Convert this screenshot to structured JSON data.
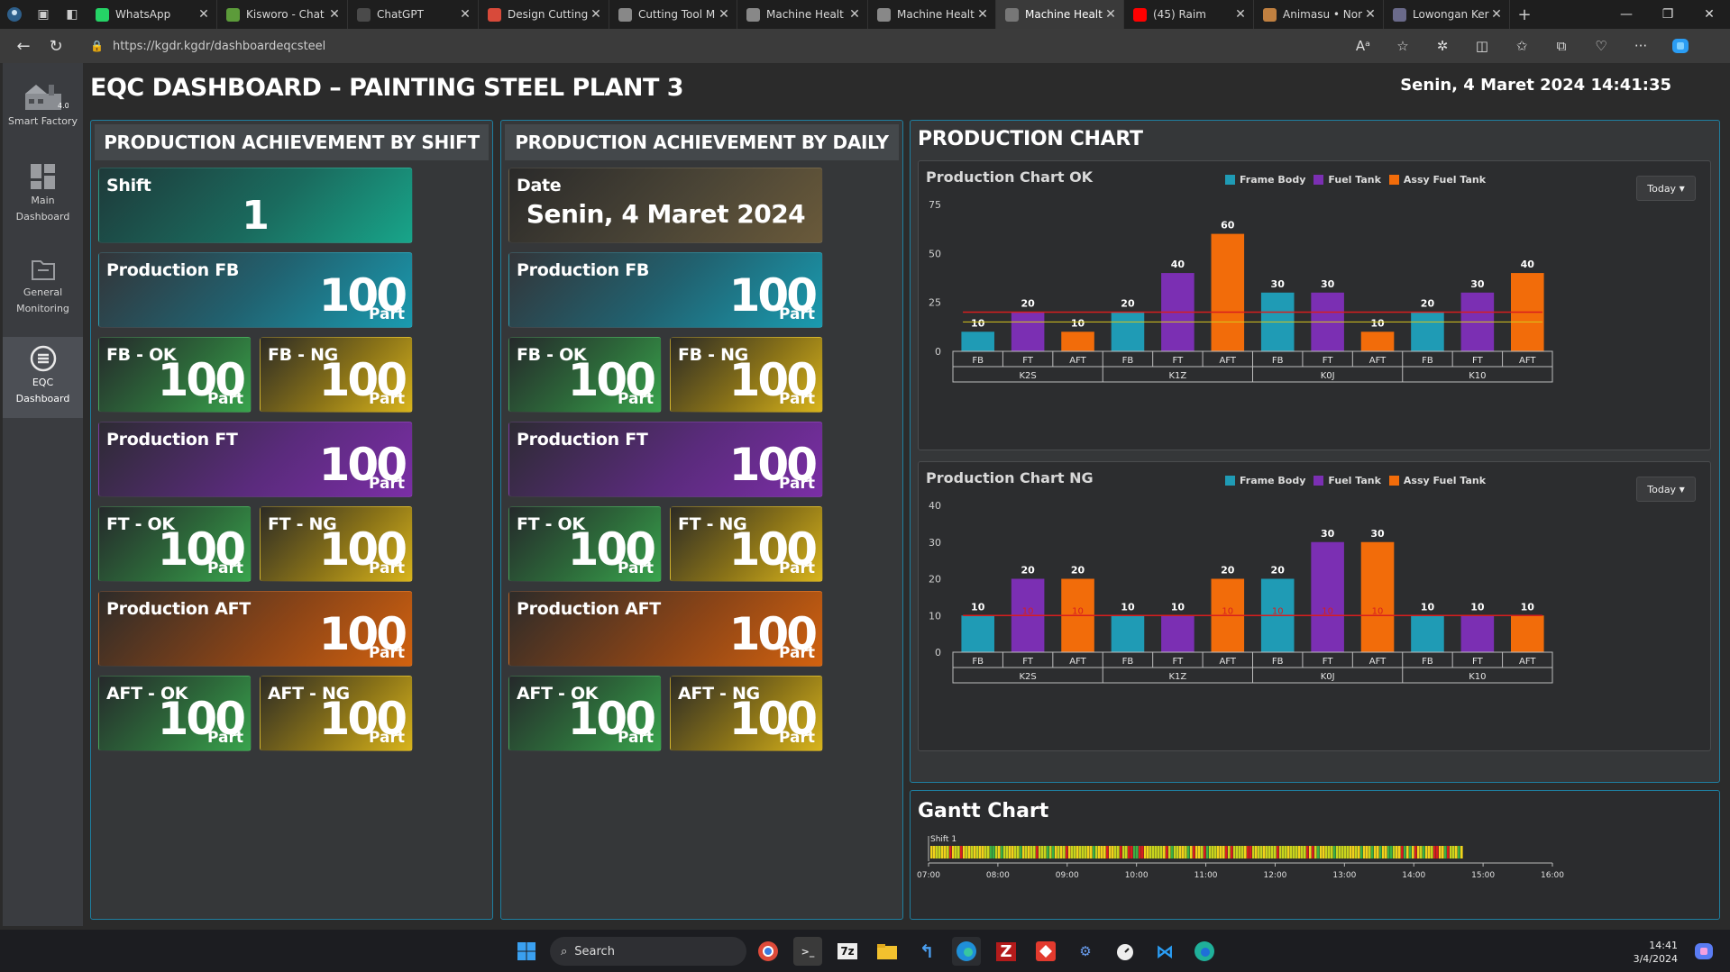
{
  "browser": {
    "tabs": [
      {
        "label": "WhatsApp",
        "icon": "whatsapp-icon",
        "color": "#25d366"
      },
      {
        "label": "Kisworo - Chat",
        "icon": "chat-icon",
        "color": "#5c9b3a"
      },
      {
        "label": "ChatGPT",
        "icon": "chatgpt-icon",
        "color": "#4a4a4a"
      },
      {
        "label": "Design Cutting",
        "icon": "doc-icon",
        "color": "#d84a3a"
      },
      {
        "label": "Cutting Tool M",
        "icon": "page-icon",
        "color": "#888888"
      },
      {
        "label": "Machine Healt",
        "icon": "page-icon",
        "color": "#888888"
      },
      {
        "label": "Machine Healt",
        "icon": "page-icon",
        "color": "#888888"
      },
      {
        "label": "Machine Healt",
        "icon": "user-icon",
        "color": "#777777"
      },
      {
        "label": "(45) Raim",
        "icon": "youtube-icon",
        "color": "#ff0000"
      },
      {
        "label": "Animasu • Nor",
        "icon": "anime-icon",
        "color": "#c08040"
      },
      {
        "label": "Lowongan Ker",
        "icon": "job-icon",
        "color": "#6a6a8a"
      }
    ],
    "active_tab": 7,
    "url_host": "https://kgdr.kgdr/dashboardeqcsteel"
  },
  "sidebar": {
    "items": [
      {
        "label": "Smart Factory",
        "icon": "factory-icon"
      },
      {
        "label": "Main Dashboard",
        "icon": "grid-icon"
      },
      {
        "label": "General Monitoring",
        "icon": "folder-icon"
      },
      {
        "label": "EQC Dashboard",
        "icon": "eqc-icon"
      }
    ],
    "factory_badge": "4.0"
  },
  "header": {
    "title": "EQC DASHBOARD – PAINTING STEEL PLANT 3",
    "datetime": "Senin, 4 Maret 2024 14:41:35"
  },
  "shift_panel": {
    "title": "PRODUCTION ACHIEVEMENT BY SHIFT",
    "shift_label": "Shift",
    "shift_value": "1",
    "unit": "Part",
    "prod_fb_label": "Production FB",
    "prod_fb": "100",
    "fb_ok_label": "FB - OK",
    "fb_ok": "100",
    "fb_ng_label": "FB - NG",
    "fb_ng": "100",
    "prod_ft_label": "Production FT",
    "prod_ft": "100",
    "ft_ok_label": "FT - OK",
    "ft_ok": "100",
    "ft_ng_label": "FT - NG",
    "ft_ng": "100",
    "prod_aft_label": "Production AFT",
    "prod_aft": "100",
    "aft_ok_label": "AFT - OK",
    "aft_ok": "100",
    "aft_ng_label": "AFT - NG",
    "aft_ng": "100"
  },
  "daily_panel": {
    "title": "PRODUCTION ACHIEVEMENT BY DAILY",
    "date_label": "Date",
    "date_value": "Senin, 4 Maret 2024",
    "unit": "Part",
    "prod_fb_label": "Production FB",
    "prod_fb": "100",
    "fb_ok_label": "FB - OK",
    "fb_ok": "100",
    "fb_ng_label": "FB - NG",
    "fb_ng": "100",
    "prod_ft_label": "Production FT",
    "prod_ft": "100",
    "ft_ok_label": "FT - OK",
    "ft_ok": "100",
    "ft_ng_label": "FT - NG",
    "ft_ng": "100",
    "prod_aft_label": "Production AFT",
    "prod_aft": "100",
    "aft_ok_label": "AFT - OK",
    "aft_ok": "100",
    "aft_ng_label": "AFT - NG",
    "aft_ng": "100"
  },
  "colors": {
    "frame_body": "#1f9bb5",
    "fuel_tank": "#7b2fb3",
    "assy_fuel_tank": "#f26c0a",
    "target_line": "#d81e1e",
    "accent_border": "#1f7fa0"
  },
  "production_chart": {
    "title": "PRODUCTION CHART",
    "dropdown_label": "Today"
  },
  "chart_data": [
    {
      "type": "bar",
      "title": "Production Chart OK",
      "categories": [
        "FB",
        "FT",
        "AFT",
        "FB",
        "FT",
        "AFT",
        "FB",
        "FT",
        "AFT",
        "FB",
        "FT",
        "AFT"
      ],
      "groups": [
        "K2S",
        "K1Z",
        "K0J",
        "K10"
      ],
      "series": [
        {
          "name": "Frame Body",
          "values": [
            10,
            null,
            null,
            20,
            null,
            null,
            30,
            null,
            null,
            20,
            null,
            null
          ]
        },
        {
          "name": "Fuel Tank",
          "values": [
            null,
            20,
            null,
            null,
            40,
            null,
            null,
            30,
            null,
            null,
            30,
            null
          ]
        },
        {
          "name": "Assy Fuel Tank",
          "values": [
            null,
            null,
            10,
            null,
            null,
            60,
            null,
            null,
            10,
            null,
            null,
            40
          ]
        }
      ],
      "bar_values": [
        10,
        20,
        10,
        20,
        40,
        60,
        30,
        30,
        10,
        20,
        30,
        40
      ],
      "bar_series": [
        0,
        1,
        2,
        0,
        1,
        2,
        0,
        1,
        2,
        0,
        1,
        2
      ],
      "target": 20,
      "secondary_line": 15,
      "ylim": [
        0,
        75
      ],
      "yticks": [
        0,
        25,
        50,
        75
      ],
      "legend_position": "top-center",
      "dropdown": "Today"
    },
    {
      "type": "bar",
      "title": "Production Chart NG",
      "categories": [
        "FB",
        "FT",
        "AFT",
        "FB",
        "FT",
        "AFT",
        "FB",
        "FT",
        "AFT",
        "FB",
        "FT",
        "AFT"
      ],
      "groups": [
        "K2S",
        "K1Z",
        "K0J",
        "K10"
      ],
      "series": [
        {
          "name": "Frame Body",
          "values": [
            10,
            null,
            null,
            10,
            null,
            null,
            20,
            null,
            null,
            10,
            null,
            null
          ]
        },
        {
          "name": "Fuel Tank",
          "values": [
            null,
            20,
            null,
            null,
            10,
            null,
            null,
            30,
            null,
            null,
            10,
            null
          ]
        },
        {
          "name": "Assy Fuel Tank",
          "values": [
            null,
            null,
            20,
            null,
            null,
            20,
            null,
            null,
            30,
            null,
            null,
            10
          ]
        }
      ],
      "bar_values": [
        10,
        20,
        20,
        10,
        10,
        20,
        20,
        30,
        30,
        10,
        10,
        10
      ],
      "bar_series": [
        0,
        1,
        2,
        0,
        1,
        2,
        0,
        1,
        2,
        0,
        1,
        2
      ],
      "target": 10,
      "target_labels": [
        "10",
        "10",
        "10",
        "10",
        "10",
        "10"
      ],
      "ylim": [
        0,
        40
      ],
      "yticks": [
        0,
        10,
        20,
        30,
        40
      ],
      "legend_position": "top-center",
      "dropdown": "Today"
    }
  ],
  "gantt": {
    "title": "Gantt Chart",
    "row_label": "Shift 1",
    "ticks": [
      "07:00",
      "08:00",
      "09:00",
      "10:00",
      "11:00",
      "12:00",
      "13:00",
      "14:00",
      "15:00",
      "16:00"
    ],
    "start_hour": 7,
    "end_hour": 16,
    "progress_until_hour": 14.69,
    "status_colors": [
      "#c8d41c",
      "#f2d21a",
      "#d81e1e",
      "#3cb043"
    ]
  },
  "taskbar": {
    "search_placeholder": "Search",
    "time": "14:41",
    "date": "3/4/2024"
  }
}
